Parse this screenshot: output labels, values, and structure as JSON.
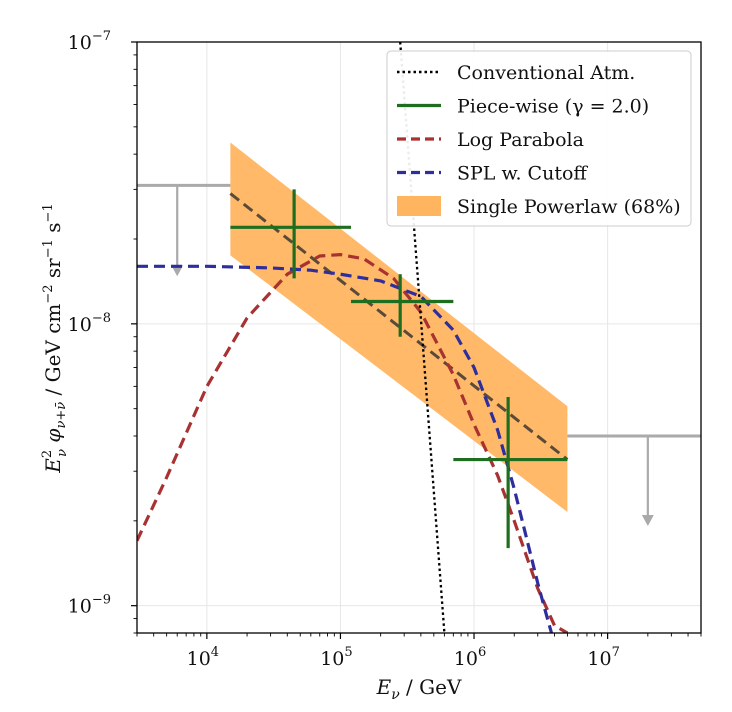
{
  "chart_data": {
    "type": "line",
    "xlabel": "E_ν / GeV",
    "ylabel": "E²_ν φ_{ν+ν̄} / GeV cm⁻² sr⁻¹ s⁻¹",
    "xscale": "log",
    "yscale": "log",
    "xlim": [
      3000,
      50000000
    ],
    "ylim": [
      8e-10,
      1e-07
    ],
    "x_ticks": [
      {
        "value": 10000,
        "base": "10",
        "exp": "4"
      },
      {
        "value": 100000,
        "base": "10",
        "exp": "5"
      },
      {
        "value": 1000000,
        "base": "10",
        "exp": "6"
      },
      {
        "value": 10000000,
        "base": "10",
        "exp": "7"
      }
    ],
    "y_ticks": [
      {
        "value": 1e-09,
        "base": "10",
        "exp": "−9"
      },
      {
        "value": 1e-08,
        "base": "10",
        "exp": "−8"
      },
      {
        "value": 1e-07,
        "base": "10",
        "exp": "−7"
      }
    ],
    "grid": true,
    "legend_position": "top-right",
    "colors": {
      "conventional": "#000000",
      "piecewise": "#1f6e1f",
      "log_parabola": "#a83232",
      "spl_cutoff": "#2e2e9c",
      "single_powerlaw_band": "#ffb560",
      "single_powerlaw_line": "#5a4a3a",
      "upper_limits": "#aaaaaa"
    },
    "series": [
      {
        "name": "Conventional Atm.",
        "style": "dotted",
        "x": [
          280000,
          600000
        ],
        "y": [
          1e-07,
          8e-10
        ]
      },
      {
        "name": "Piece-wise (γ = 2.0)",
        "style": "errorbar",
        "points": [
          {
            "x_low": 15000,
            "x_high": 120000,
            "x": 45000,
            "y": 2.2e-08,
            "y_low": 1.45e-08,
            "y_high": 3e-08
          },
          {
            "x_low": 120000,
            "x_high": 700000,
            "x": 280000,
            "y": 1.2e-08,
            "y_low": 9e-09,
            "y_high": 1.5e-08
          },
          {
            "x_low": 700000,
            "x_high": 5000000,
            "x": 1800000,
            "y": 3.3e-09,
            "y_low": 1.6e-09,
            "y_high": 5.5e-09
          }
        ]
      },
      {
        "name": "Log Parabola",
        "style": "dashed",
        "x": [
          3000,
          5000,
          10000,
          20000,
          40000,
          70000,
          100000,
          150000,
          250000,
          400000,
          700000,
          1000000,
          1500000,
          2000000,
          3000000,
          4000000,
          5000000
        ],
        "y": [
          1.7e-09,
          2.85e-09,
          6e-09,
          1.05e-08,
          1.5e-08,
          1.74e-08,
          1.76e-08,
          1.7e-08,
          1.45e-08,
          1.1e-08,
          6.6e-09,
          4.4e-09,
          2.9e-09,
          2e-09,
          1.15e-09,
          8.5e-10,
          8e-10
        ]
      },
      {
        "name": "SPL w. Cutoff",
        "style": "dashed",
        "x": [
          3000,
          10000,
          30000,
          60000,
          100000,
          200000,
          400000,
          700000,
          1000000,
          1500000,
          2000000,
          2500000,
          3000000,
          3500000,
          3800000
        ],
        "y": [
          1.6e-08,
          1.6e-08,
          1.58e-08,
          1.55e-08,
          1.5e-08,
          1.42e-08,
          1.25e-08,
          9.5e-09,
          7e-09,
          4.2e-09,
          2.6e-09,
          1.7e-09,
          1.2e-09,
          9.2e-10,
          8e-10
        ]
      },
      {
        "name": "Single Powerlaw (68%)",
        "style": "band",
        "x": [
          15000,
          5000000
        ],
        "y": [
          2.9e-08,
          3.3e-09
        ],
        "y_upper": [
          4.4e-08,
          5.1e-09
        ],
        "y_lower": [
          1.75e-08,
          2.15e-09
        ]
      }
    ],
    "upper_limits": [
      {
        "x_low": 3000,
        "x_high": 15000,
        "y": 3.1e-08,
        "arrow_x": 6000,
        "arrow_to": 1.5e-08
      },
      {
        "x_low": 5000000,
        "x_high": 50000000,
        "y": 4e-09,
        "arrow_x": 20000000,
        "arrow_to": 1.95e-09
      }
    ]
  }
}
